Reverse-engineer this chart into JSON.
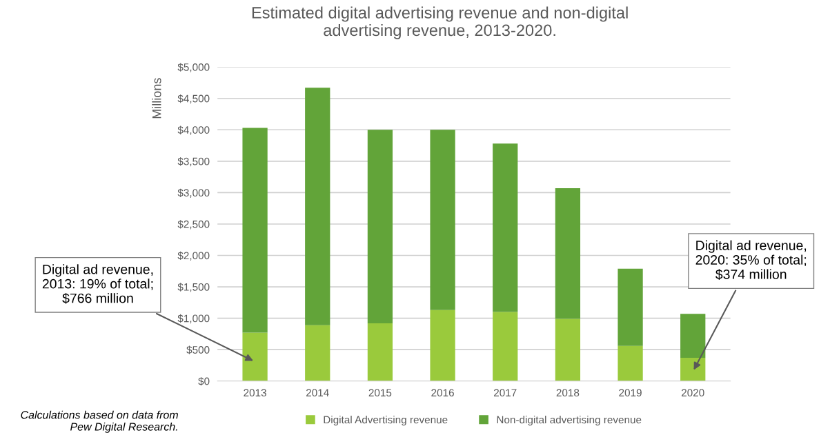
{
  "chart_data": {
    "type": "bar",
    "stacked": true,
    "title": "Estimated digital advertising revenue and non-digital\nadvertising revenue, 2013-2020.",
    "ylabel": "Millions",
    "categories": [
      "2013",
      "2014",
      "2015",
      "2016",
      "2017",
      "2018",
      "2019",
      "2020"
    ],
    "series": [
      {
        "name": "Digital Advertising revenue",
        "color": "#9aca3c",
        "values": [
          770,
          890,
          920,
          1130,
          1100,
          990,
          560,
          370
        ]
      },
      {
        "name": "Non-digital advertising revenue",
        "color": "#62a439",
        "values": [
          3260,
          3780,
          3080,
          2870,
          2680,
          2080,
          1230,
          700
        ]
      }
    ],
    "ylim": [
      0,
      5000
    ],
    "yticks": [
      {
        "value": 0,
        "label": "$0"
      },
      {
        "value": 500,
        "label": "$500"
      },
      {
        "value": 1000,
        "label": "$1,000"
      },
      {
        "value": 1500,
        "label": "$1,500"
      },
      {
        "value": 2000,
        "label": "$2,000"
      },
      {
        "value": 2500,
        "label": "$2,500"
      },
      {
        "value": 3000,
        "label": "$3,000"
      },
      {
        "value": 3500,
        "label": "$3,500"
      },
      {
        "value": 4000,
        "label": "$4,000"
      },
      {
        "value": 4500,
        "label": "$4,500"
      },
      {
        "value": 5000,
        "label": "$5,000"
      }
    ],
    "grid": "y",
    "legend": "bottom",
    "annotations": [
      "Digital ad revenue,\n2013: 19% of total;\n$766 million",
      "Digital ad revenue,\n2020: 35% of total;\n$374 million",
      "Calculations based on data from\nPew Digital Research."
    ]
  }
}
